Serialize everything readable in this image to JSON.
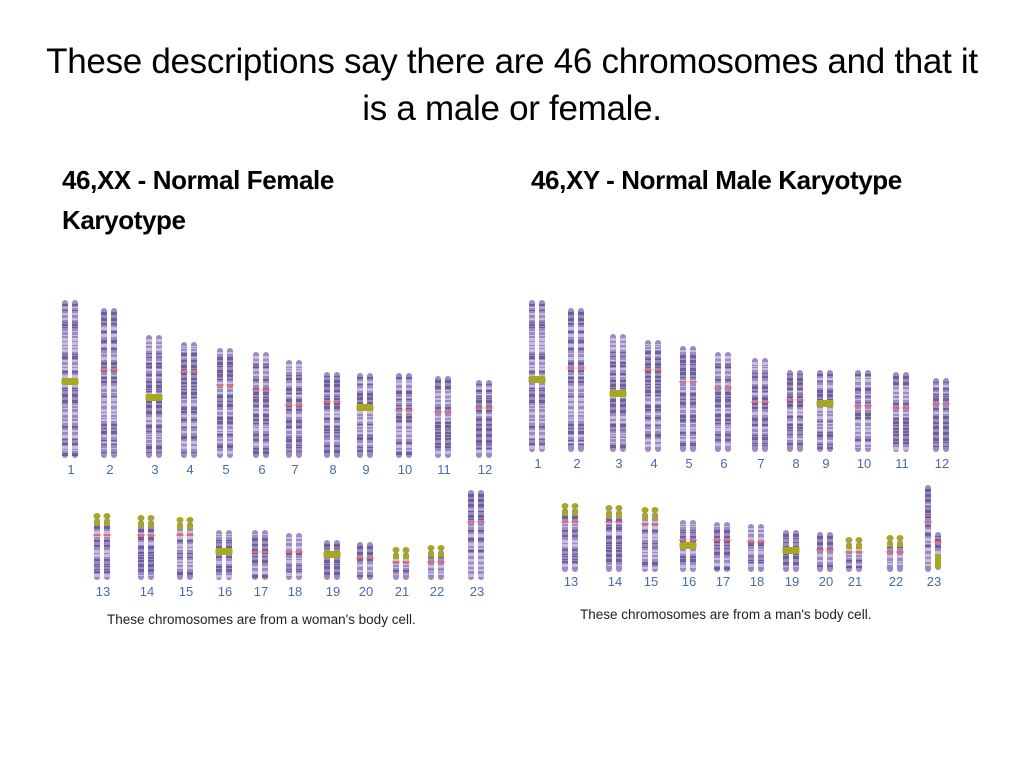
{
  "slide": {
    "title": "These descriptions say there are 46 chromosomes and that it is a male or female."
  },
  "left": {
    "heading": "46,XX - Normal Female Karyotype",
    "caption": "These chromosomes are from a woman's body cell.",
    "labels": [
      "1",
      "2",
      "3",
      "4",
      "5",
      "6",
      "7",
      "8",
      "9",
      "10",
      "11",
      "12",
      "13",
      "14",
      "15",
      "16",
      "17",
      "18",
      "19",
      "20",
      "21",
      "22",
      "23"
    ]
  },
  "right": {
    "heading": "46,XY - Normal Male Karyotype",
    "caption": "These chromosomes are from a man's body cell.",
    "labels": [
      "1",
      "2",
      "3",
      "4",
      "5",
      "6",
      "7",
      "8",
      "9",
      "10",
      "11",
      "12",
      "13",
      "14",
      "15",
      "16",
      "17",
      "18",
      "19",
      "20",
      "21",
      "22",
      "23"
    ]
  },
  "colors": {
    "chromosome": "#9c8ac4",
    "band_dark": "#6f5e9e",
    "band_light": "#c8bde0",
    "satellite": "#a7a81f",
    "centromere": "#e96a6a",
    "label": "#4a6aa8"
  }
}
